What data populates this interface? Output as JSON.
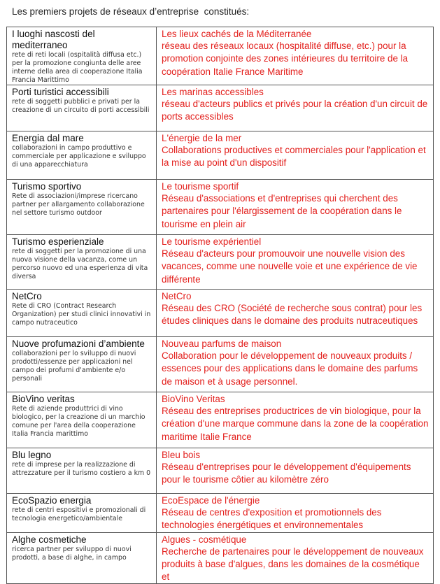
{
  "title": "Les premiers projets de réseaux d’entreprise  constitués:",
  "colors": {
    "french_text": "#e3201d",
    "italian_text": "#111111",
    "border": "#555555"
  },
  "rows": [
    {
      "it_title": "I luoghi nascosti del mediterraneo",
      "it_desc": "rete di reti locali (ospitalità diffusa etc.) per la promozione congiunta delle aree interne della area di cooperazione Italia Francia Marittimo",
      "fr_title": "Les lieux cachés de la Méditerranée",
      "fr_desc": "réseau des réseaux locaux (hospitalité diffuse, etc.) pour la promotion conjointe des zones intérieures du territoire de la coopération Italie France Maritime"
    },
    {
      "it_title": "Porti turistici accessibili",
      "it_desc": "rete di soggetti pubblici e privati per la creazione di un circuito di porti accessibili",
      "fr_title": "Les marinas accessibles",
      "fr_desc": "réseau d'acteurs publics et privés pour la création d'un circuit de ports accessibles"
    },
    {
      "it_title": "Energia dal mare",
      "it_desc": "collaborazioni in campo produttivo e commerciale per applicazione e sviluppo di una apparecchiatura",
      "fr_title": "L'énergie de la mer",
      "fr_desc": "Collaborations productives et commerciales pour l'application et la mise au point d'un dispositif"
    },
    {
      "it_title": "Turismo sportivo",
      "it_desc": "Rete di associazioni/imprese ricercano partner per allargamento collaborazione nel settore turismo outdoor",
      "fr_title": "Le tourisme sportif",
      "fr_desc": "Réseau d'associations et d'entreprises qui cherchent des partenaires pour l'élargissement de la coopération dans le tourisme en plein air"
    },
    {
      "it_title": "Turismo esperienziale",
      "it_desc": "rete di soggetti per la promozione di una nuova visione della vacanza, come un percorso nuovo ed una esperienza di vita diversa",
      "fr_title": "Le tourisme expérientiel",
      "fr_desc": "Réseau d'acteurs pour promouvoir une nouvelle vision des vacances, comme une nouvelle voie et une expérience de vie différente"
    },
    {
      "it_title": "NetCro",
      "it_desc": "Rete di CRO (Contract Research Organization) per studi clinici innovativi in campo nutraceutico",
      "fr_title": "NetCro",
      "fr_desc": "Réseau des CRO (Société de recherche sous contrat) pour les études cliniques dans le domaine des produits nutraceutiques"
    },
    {
      "it_title": "Nuove profumazioni d’ambiente",
      "it_desc": "collaborazioni per lo sviluppo di nuovi prodotti/essenze per applicazioni nel campo dei profumi d'ambiente e/o personali",
      "fr_title": "Nouveau parfums de maison",
      "fr_desc": "Collaboration pour le développement de nouveaux produits / essences pour des applications dans le domaine des parfums de maison et à usage personnel."
    },
    {
      "it_title": "BioVino veritas",
      "it_desc": "Rete di aziende produttrici di vino biologico, per la creazione di un marchio comune per l'area della cooperazione Italia Francia marittimo",
      "fr_title": "BioVino Veritas",
      "fr_desc": "Réseau des entreprises productrices de vin biologique, pour la création d'une marque commune dans la zone de la coopération maritime Italie France"
    },
    {
      "it_title": "Blu legno",
      "it_desc": "rete di imprese per la realizzazione di attrezzature per il turismo costiero a km 0",
      "fr_title": "Bleu bois",
      "fr_desc": "Réseau d'entreprises pour le développement d'équipements pour le tourisme côtier au kilomètre zéro"
    },
    {
      "it_title": "EcoSpazio energia",
      "it_desc": "rete di centri espositivi e promozionali di tecnologia energetico/ambientale",
      "fr_title": "EcoEspace de l'énergie",
      "fr_desc": "Réseau de centres d'exposition et promotionnels des technologies énergétiques et environnementales"
    },
    {
      "it_title": "Alghe cosmetiche",
      "it_desc": "ricerca partner per sviluppo di nuovi prodotti, a base di alghe, in campo",
      "fr_title": "Algues - cosmétique",
      "fr_desc": "Recherche de partenaires pour le développement de nouveaux produits à base d'algues, dans les domaines de la cosmétique et"
    }
  ]
}
